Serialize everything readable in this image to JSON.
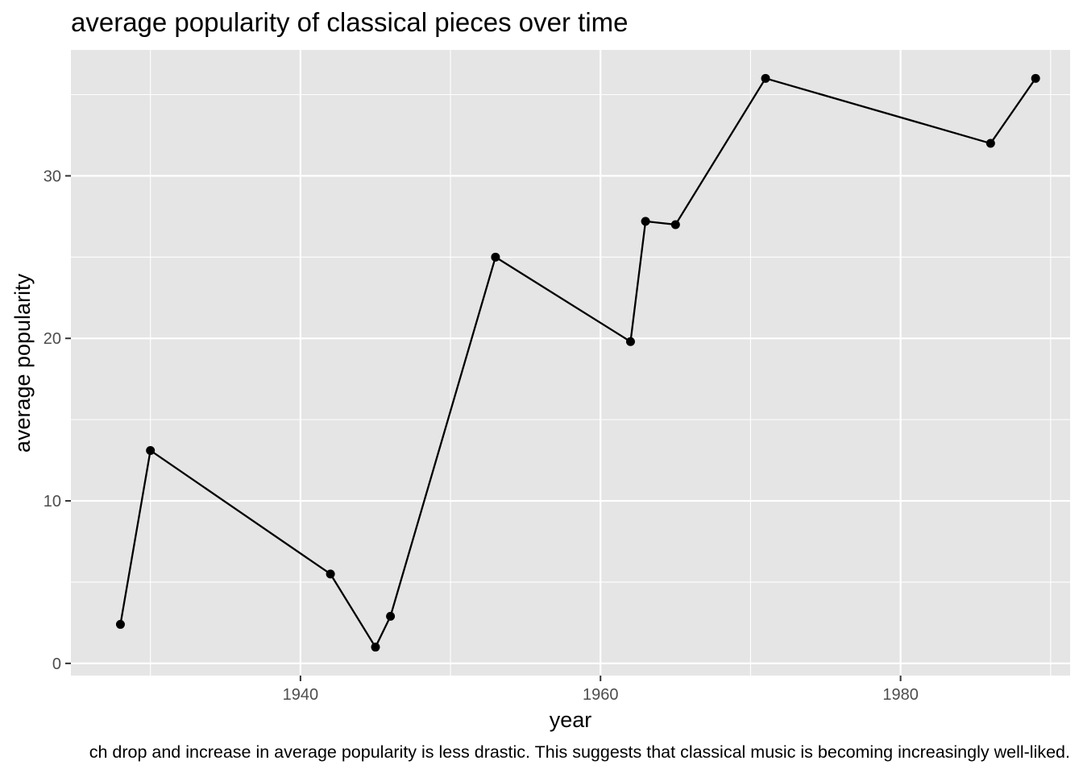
{
  "chart_data": {
    "type": "line",
    "title": "average popularity of classical pieces over time",
    "xlabel": "year",
    "ylabel": "average popularity",
    "caption": "ch drop and increase in average popularity is less drastic. This suggests that classical music is becoming increasingly well-liked.",
    "xlim": [
      1924.7,
      1991.3
    ],
    "ylim": [
      -0.75,
      37.75
    ],
    "x_ticks": [
      1940,
      1960,
      1980
    ],
    "y_ticks": [
      0,
      10,
      20,
      30
    ],
    "grid": true,
    "points": [
      {
        "x": 1928,
        "y": 2.4
      },
      {
        "x": 1930,
        "y": 13.1
      },
      {
        "x": 1942,
        "y": 5.5
      },
      {
        "x": 1945,
        "y": 1.0
      },
      {
        "x": 1946,
        "y": 2.9
      },
      {
        "x": 1953,
        "y": 25.0
      },
      {
        "x": 1962,
        "y": 19.8
      },
      {
        "x": 1963,
        "y": 27.2
      },
      {
        "x": 1965,
        "y": 27.0
      },
      {
        "x": 1971,
        "y": 36.0
      },
      {
        "x": 1986,
        "y": 32.0
      },
      {
        "x": 1989,
        "y": 36.0
      }
    ],
    "colors": {
      "panel": "#e5e5e5",
      "grid": "#ffffff",
      "line": "#000000",
      "point": "#000000",
      "tick_label": "#4d4d4d",
      "tick": "#333333"
    }
  }
}
